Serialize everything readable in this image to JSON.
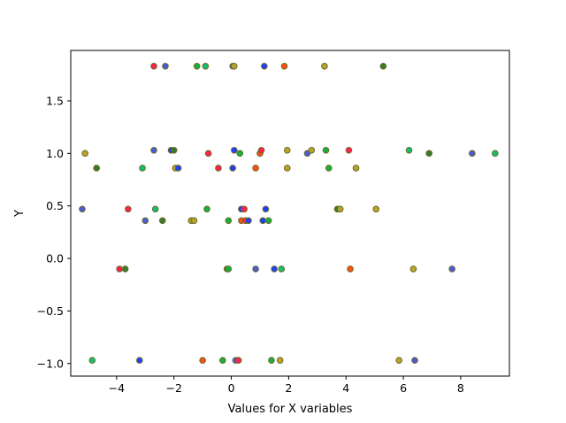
{
  "chart_data": {
    "type": "scatter",
    "title": "",
    "xlabel": "Values for X variables",
    "ylabel": "Y",
    "xlim": [
      -5.6,
      9.7
    ],
    "ylim": [
      -1.12,
      1.98
    ],
    "xticks": [
      -4,
      -2,
      0,
      2,
      4,
      6,
      8
    ],
    "yticks": [
      -1.0,
      -0.5,
      0.0,
      0.5,
      1.0,
      1.5
    ],
    "ytick_labels": [
      "−1.0",
      "−0.5",
      "0.0",
      "0.5",
      "1.0",
      "1.5"
    ],
    "xtick_labels": [
      "−4",
      "−2",
      "0",
      "2",
      "4",
      "6",
      "8"
    ],
    "grid": false,
    "marker_colors": {
      "blue": "#1f3fff",
      "red": "#ff2050",
      "green": "#17b03a",
      "olive": "#b8a42a",
      "teal": "#10c070",
      "navy": "#4a5bd8",
      "orange": "#ff4f10",
      "darkgreen": "#3a7a2a"
    },
    "points": [
      {
        "x": -2.7,
        "y": 1.83,
        "c": "red"
      },
      {
        "x": -2.3,
        "y": 1.83,
        "c": "navy"
      },
      {
        "x": -1.2,
        "y": 1.83,
        "c": "green"
      },
      {
        "x": -0.9,
        "y": 1.83,
        "c": "teal"
      },
      {
        "x": 0.05,
        "y": 1.83,
        "c": "navy"
      },
      {
        "x": 0.1,
        "y": 1.83,
        "c": "olive"
      },
      {
        "x": 1.15,
        "y": 1.83,
        "c": "blue"
      },
      {
        "x": 1.85,
        "y": 1.83,
        "c": "orange"
      },
      {
        "x": 3.25,
        "y": 1.83,
        "c": "olive"
      },
      {
        "x": 5.3,
        "y": 1.83,
        "c": "darkgreen"
      },
      {
        "x": -5.1,
        "y": 1.0,
        "c": "olive"
      },
      {
        "x": -2.7,
        "y": 1.03,
        "c": "navy"
      },
      {
        "x": -2.1,
        "y": 1.03,
        "c": "blue"
      },
      {
        "x": -2.0,
        "y": 1.03,
        "c": "darkgreen"
      },
      {
        "x": -0.8,
        "y": 1.0,
        "c": "red"
      },
      {
        "x": 0.1,
        "y": 1.03,
        "c": "blue"
      },
      {
        "x": 0.3,
        "y": 1.0,
        "c": "green"
      },
      {
        "x": 1.0,
        "y": 1.0,
        "c": "orange"
      },
      {
        "x": 1.05,
        "y": 1.03,
        "c": "red"
      },
      {
        "x": 1.95,
        "y": 1.03,
        "c": "olive"
      },
      {
        "x": 2.65,
        "y": 1.0,
        "c": "navy"
      },
      {
        "x": 2.8,
        "y": 1.03,
        "c": "olive"
      },
      {
        "x": 3.3,
        "y": 1.03,
        "c": "green"
      },
      {
        "x": 4.1,
        "y": 1.03,
        "c": "red"
      },
      {
        "x": 6.2,
        "y": 1.03,
        "c": "teal"
      },
      {
        "x": 6.9,
        "y": 1.0,
        "c": "darkgreen"
      },
      {
        "x": 8.4,
        "y": 1.0,
        "c": "navy"
      },
      {
        "x": 9.2,
        "y": 1.0,
        "c": "teal"
      },
      {
        "x": -4.7,
        "y": 0.86,
        "c": "darkgreen"
      },
      {
        "x": -3.1,
        "y": 0.86,
        "c": "teal"
      },
      {
        "x": -1.95,
        "y": 0.86,
        "c": "olive"
      },
      {
        "x": -1.85,
        "y": 0.86,
        "c": "blue"
      },
      {
        "x": -0.45,
        "y": 0.86,
        "c": "red"
      },
      {
        "x": 0.05,
        "y": 0.86,
        "c": "blue"
      },
      {
        "x": 0.85,
        "y": 0.86,
        "c": "orange"
      },
      {
        "x": 1.95,
        "y": 0.86,
        "c": "olive"
      },
      {
        "x": 3.4,
        "y": 0.86,
        "c": "green"
      },
      {
        "x": 4.35,
        "y": 0.86,
        "c": "olive"
      },
      {
        "x": -5.2,
        "y": 0.47,
        "c": "navy"
      },
      {
        "x": -3.6,
        "y": 0.47,
        "c": "red"
      },
      {
        "x": -2.65,
        "y": 0.47,
        "c": "teal"
      },
      {
        "x": -0.85,
        "y": 0.47,
        "c": "green"
      },
      {
        "x": 0.35,
        "y": 0.47,
        "c": "blue"
      },
      {
        "x": 0.45,
        "y": 0.47,
        "c": "red"
      },
      {
        "x": 1.2,
        "y": 0.47,
        "c": "blue"
      },
      {
        "x": 3.7,
        "y": 0.47,
        "c": "darkgreen"
      },
      {
        "x": 3.8,
        "y": 0.47,
        "c": "olive"
      },
      {
        "x": 5.05,
        "y": 0.47,
        "c": "olive"
      },
      {
        "x": -3.0,
        "y": 0.36,
        "c": "navy"
      },
      {
        "x": -2.4,
        "y": 0.36,
        "c": "darkgreen"
      },
      {
        "x": -1.4,
        "y": 0.36,
        "c": "olive"
      },
      {
        "x": -1.3,
        "y": 0.36,
        "c": "olive"
      },
      {
        "x": -0.1,
        "y": 0.36,
        "c": "green"
      },
      {
        "x": 0.35,
        "y": 0.36,
        "c": "orange"
      },
      {
        "x": 0.5,
        "y": 0.36,
        "c": "red"
      },
      {
        "x": 0.6,
        "y": 0.36,
        "c": "blue"
      },
      {
        "x": 1.1,
        "y": 0.36,
        "c": "blue"
      },
      {
        "x": 1.3,
        "y": 0.36,
        "c": "green"
      },
      {
        "x": -3.9,
        "y": -0.1,
        "c": "red"
      },
      {
        "x": -3.7,
        "y": -0.1,
        "c": "darkgreen"
      },
      {
        "x": -0.15,
        "y": -0.1,
        "c": "darkgreen"
      },
      {
        "x": -0.1,
        "y": -0.1,
        "c": "green"
      },
      {
        "x": 0.85,
        "y": -0.1,
        "c": "navy"
      },
      {
        "x": 1.5,
        "y": -0.1,
        "c": "blue"
      },
      {
        "x": 1.75,
        "y": -0.1,
        "c": "teal"
      },
      {
        "x": 4.15,
        "y": -0.1,
        "c": "orange"
      },
      {
        "x": 6.35,
        "y": -0.1,
        "c": "olive"
      },
      {
        "x": 7.7,
        "y": -0.1,
        "c": "navy"
      },
      {
        "x": -4.85,
        "y": -0.97,
        "c": "teal"
      },
      {
        "x": -3.2,
        "y": -0.97,
        "c": "blue"
      },
      {
        "x": -1.0,
        "y": -0.97,
        "c": "orange"
      },
      {
        "x": -0.3,
        "y": -0.97,
        "c": "green"
      },
      {
        "x": 0.15,
        "y": -0.97,
        "c": "navy"
      },
      {
        "x": 0.25,
        "y": -0.97,
        "c": "red"
      },
      {
        "x": 1.4,
        "y": -0.97,
        "c": "green"
      },
      {
        "x": 1.7,
        "y": -0.97,
        "c": "olive"
      },
      {
        "x": 5.85,
        "y": -0.97,
        "c": "olive"
      },
      {
        "x": 6.4,
        "y": -0.97,
        "c": "navy"
      }
    ]
  }
}
